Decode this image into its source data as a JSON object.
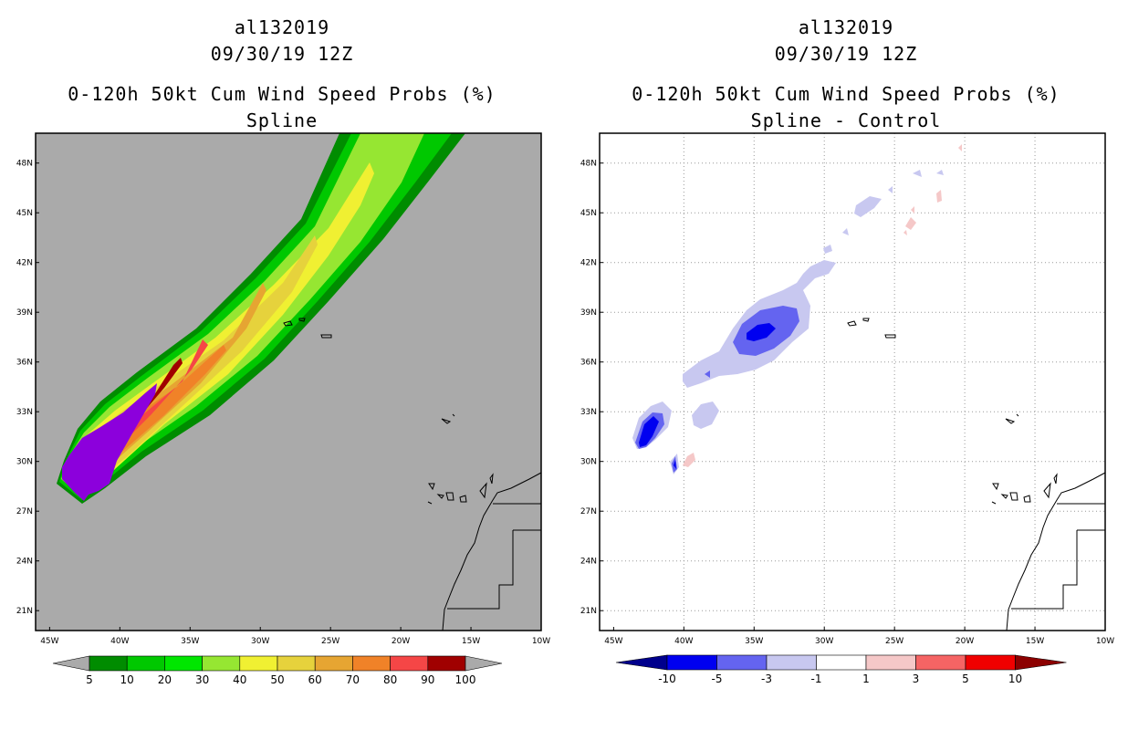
{
  "chart_data": [
    {
      "type": "heatmap",
      "storm_id": "al132019",
      "date": "09/30/19 12Z",
      "title": "0-120h 50kt Cum Wind Speed Probs (%)",
      "subtitle": "Spline",
      "x_ticks": [
        "45W",
        "40W",
        "35W",
        "30W",
        "25W",
        "20W",
        "15W",
        "10W"
      ],
      "y_ticks": [
        "48N",
        "45N",
        "42N",
        "39N",
        "36N",
        "33N",
        "30N",
        "27N",
        "24N",
        "21N"
      ],
      "xlim_lon": [
        -46,
        -10
      ],
      "ylim_lat": [
        19.8,
        49.8
      ],
      "colorbar": {
        "ticks": [
          "5",
          "10",
          "20",
          "30",
          "40",
          "50",
          "60",
          "70",
          "80",
          "90",
          "100"
        ],
        "colors": [
          "#008c00",
          "#00c800",
          "#00e600",
          "#96e632",
          "#f0f032",
          "#e6d23c",
          "#e6a532",
          "#f08228",
          "#f54646",
          "#a00000",
          "#8c00dc"
        ]
      }
    },
    {
      "type": "heatmap",
      "storm_id": "al132019",
      "date": "09/30/19 12Z",
      "title": "0-120h 50kt Cum Wind Speed Probs (%)",
      "subtitle": "Spline - Control",
      "x_ticks": [
        "45W",
        "40W",
        "35W",
        "30W",
        "25W",
        "20W",
        "15W",
        "10W"
      ],
      "y_ticks": [
        "48N",
        "45N",
        "42N",
        "39N",
        "36N",
        "33N",
        "30N",
        "27N",
        "24N",
        "21N"
      ],
      "xlim_lon": [
        -46,
        -10
      ],
      "ylim_lat": [
        19.8,
        49.8
      ],
      "colorbar": {
        "ticks": [
          "-10",
          "-5",
          "-3",
          "-1",
          "1",
          "3",
          "5",
          "10"
        ],
        "colors": [
          "#00008c",
          "#0000f0",
          "#6464f0",
          "#c8c8f0",
          "#ffffff",
          "#f5c8c8",
          "#f56464",
          "#f00000",
          "#8c0000"
        ]
      }
    }
  ]
}
